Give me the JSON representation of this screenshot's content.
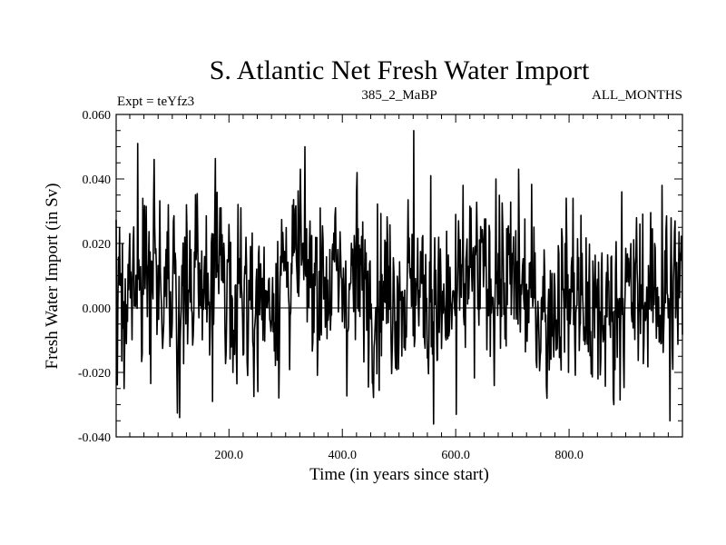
{
  "chart_data": {
    "type": "line",
    "title": "S. Atlantic Net Fresh Water Import",
    "subtitle_left": "Expt = teYfz3",
    "subtitle_center": "385_2_MaBP",
    "subtitle_right": "ALL_MONTHS",
    "xlabel": "Time (in years since start)",
    "ylabel": "Fresh Water Import (in Sv)",
    "xlim": [
      1,
      1000
    ],
    "ylim": [
      -0.04,
      0.06
    ],
    "xticks": [
      200,
      400,
      600,
      800
    ],
    "xtick_labels": [
      "200.0",
      "400.0",
      "600.0",
      "800.0"
    ],
    "yticks": [
      -0.04,
      -0.02,
      0.0,
      0.02,
      0.04,
      0.06
    ],
    "ytick_labels": [
      "-0.040",
      "-0.020",
      "0.000",
      "0.020",
      "0.040",
      "0.060"
    ],
    "zero_line": true,
    "series": [
      {
        "name": "Net Fresh Water Import",
        "generated": true,
        "n": 1000,
        "seed": 385,
        "segment_means": [
          [
            0,
            0.005
          ],
          [
            45,
            0.011
          ],
          [
            110,
            0.001
          ],
          [
            140,
            0.007
          ],
          [
            200,
            0.01
          ],
          [
            260,
            0.001
          ],
          [
            300,
            0.013
          ],
          [
            380,
            0.008
          ],
          [
            450,
            0.007
          ],
          [
            530,
            0.006
          ],
          [
            580,
            -0.003
          ],
          [
            620,
            0.008
          ],
          [
            680,
            0.009
          ],
          [
            760,
            0.0
          ],
          [
            800,
            0.008
          ],
          [
            840,
            -0.004
          ],
          [
            880,
            0.001
          ],
          [
            920,
            0.004
          ],
          [
            1000,
            0.006
          ]
        ],
        "noise_sd": 0.0128,
        "spikes": [
          [
            14,
            -0.025
          ],
          [
            38,
            0.051
          ],
          [
            47,
            0.034
          ],
          [
            92,
            0.032
          ],
          [
            112,
            -0.034
          ],
          [
            170,
            -0.029
          ],
          [
            183,
            0.031
          ],
          [
            325,
            0.043
          ],
          [
            360,
            0.031
          ],
          [
            425,
            0.042
          ],
          [
            525,
            0.055
          ],
          [
            555,
            0.041
          ],
          [
            600,
            -0.033
          ],
          [
            612,
            0.038
          ],
          [
            670,
            0.04
          ],
          [
            710,
            0.043
          ],
          [
            760,
            -0.028
          ],
          [
            798,
            -0.02
          ],
          [
            850,
            -0.022
          ],
          [
            878,
            -0.03
          ],
          [
            892,
            0.036
          ],
          [
            963,
            0.038
          ],
          [
            977,
            -0.035
          ]
        ]
      }
    ]
  }
}
